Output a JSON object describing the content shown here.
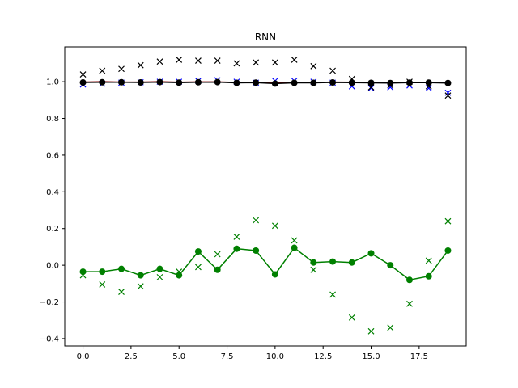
{
  "chart_data": {
    "type": "line",
    "title": "RNN",
    "xlabel": "",
    "ylabel": "",
    "xlim": [
      -0.95,
      19.95
    ],
    "ylim": [
      -0.44,
      1.19
    ],
    "xticks": [
      0.0,
      2.5,
      5.0,
      7.5,
      10.0,
      12.5,
      15.0,
      17.5
    ],
    "xtick_labels": [
      "0.0",
      "2.5",
      "5.0",
      "7.5",
      "10.0",
      "12.5",
      "15.0",
      "17.5"
    ],
    "yticks": [
      -0.4,
      -0.2,
      0.0,
      0.2,
      0.4,
      0.6,
      0.8,
      1.0
    ],
    "ytick_labels": [
      "−0.4",
      "−0.2",
      "0.0",
      "0.2",
      "0.4",
      "0.6",
      "0.8",
      "1.0"
    ],
    "grid": false,
    "x": [
      0,
      1,
      2,
      3,
      4,
      5,
      6,
      7,
      8,
      9,
      10,
      11,
      12,
      13,
      14,
      15,
      16,
      17,
      18,
      19
    ],
    "series": [
      {
        "color": "#0000ff",
        "marker": "x",
        "line": false,
        "values": [
          0.985,
          0.99,
          0.995,
          0.997,
          1.0,
          1.0,
          1.005,
          1.008,
          1.0,
          0.995,
          1.005,
          1.005,
          1.0,
          0.995,
          0.975,
          0.965,
          0.97,
          0.98,
          0.965,
          0.94
        ]
      },
      {
        "color": "#000000",
        "marker": "x",
        "line": false,
        "values": [
          1.04,
          1.06,
          1.07,
          1.09,
          1.11,
          1.12,
          1.115,
          1.115,
          1.1,
          1.105,
          1.105,
          1.12,
          1.085,
          1.06,
          1.015,
          0.97,
          0.98,
          1.0,
          0.975,
          0.925
        ]
      },
      {
        "color": "#800000",
        "marker": "none",
        "line": true,
        "values": [
          0.998,
          1.0,
          0.998,
          0.998,
          1.0,
          0.997,
          0.999,
          0.999,
          0.996,
          0.997,
          0.993,
          0.996,
          0.996,
          0.998,
          0.997,
          0.996,
          0.996,
          0.996,
          0.997,
          0.995
        ]
      },
      {
        "color": "#000000",
        "marker": "o",
        "line": true,
        "values": [
          0.996,
          0.997,
          0.997,
          0.996,
          0.998,
          0.995,
          0.997,
          0.998,
          0.994,
          0.995,
          0.99,
          0.994,
          0.994,
          0.996,
          0.995,
          0.994,
          0.993,
          0.995,
          0.995,
          0.993
        ]
      },
      {
        "color": "#008000",
        "marker": "x",
        "line": false,
        "values": [
          -0.055,
          -0.105,
          -0.145,
          -0.115,
          -0.065,
          -0.035,
          -0.01,
          0.06,
          0.155,
          0.245,
          0.215,
          0.135,
          -0.025,
          -0.16,
          -0.285,
          -0.36,
          -0.34,
          -0.21,
          0.025,
          0.24
        ]
      },
      {
        "color": "#008000",
        "marker": "o",
        "line": true,
        "values": [
          -0.035,
          -0.035,
          -0.02,
          -0.055,
          -0.02,
          -0.055,
          0.075,
          -0.025,
          0.09,
          0.08,
          -0.05,
          0.095,
          0.015,
          0.02,
          0.015,
          0.065,
          0.0,
          -0.08,
          -0.06,
          0.08
        ]
      }
    ]
  }
}
